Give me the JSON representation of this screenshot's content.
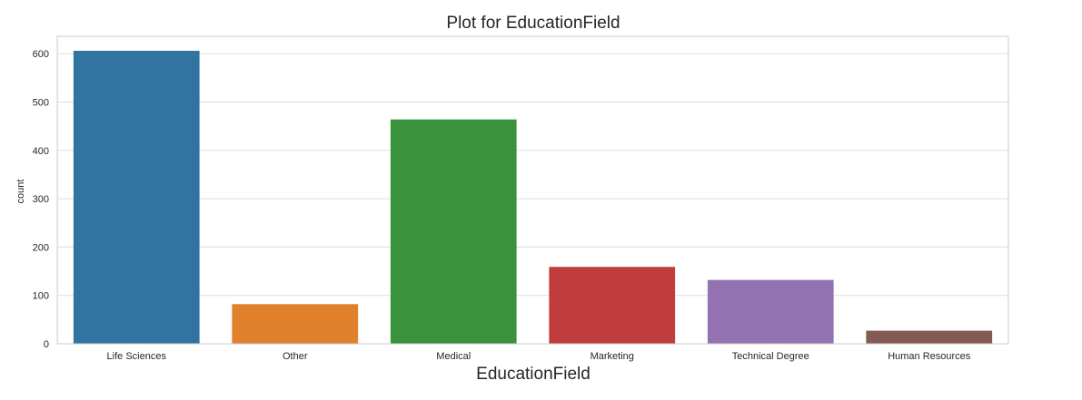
{
  "chart_data": {
    "type": "bar",
    "title": "Plot for EducationField",
    "xlabel": "EducationField",
    "ylabel": "count",
    "categories": [
      "Life Sciences",
      "Other",
      "Medical",
      "Marketing",
      "Technical Degree",
      "Human Resources"
    ],
    "values": [
      606,
      82,
      464,
      159,
      132,
      27
    ],
    "colors": [
      "#3274a1",
      "#e1812c",
      "#3a923a",
      "#c03d3e",
      "#9372b2",
      "#845b53"
    ],
    "yticks": [
      0,
      100,
      200,
      300,
      400,
      500,
      600
    ],
    "ylim": [
      0,
      636
    ],
    "grid": true,
    "legend": "none",
    "style": {
      "grid_color": "#dddddd",
      "spine_color": "#cccccc",
      "text_color": "#262626"
    }
  }
}
